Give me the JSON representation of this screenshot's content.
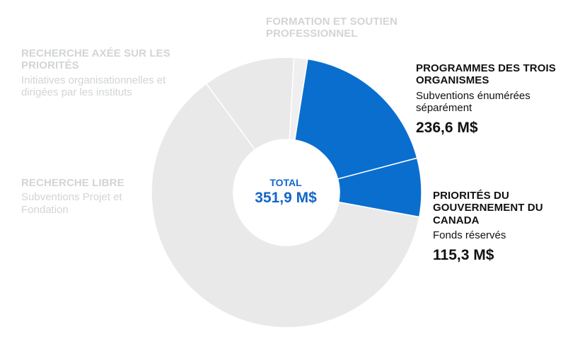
{
  "chart_data": {
    "type": "pie",
    "center": {
      "label": "TOTAL",
      "value": "351,9 M$"
    },
    "colors": {
      "highlight": "#0a6ecf",
      "muted": "#e9e9e9",
      "muted_alt": "#efefef",
      "separator": "#ffffff"
    },
    "slices": [
      {
        "name": "PROGRAMMES DES TROIS ORGANISMES",
        "sub": "Subventions énumérées séparément",
        "value_label": "236,6 M$",
        "value": 236.6,
        "highlighted": true
      },
      {
        "name": "PRIORITÉS DU GOUVERNEMENT DU CANADA",
        "sub": "Fonds réservés",
        "value_label": "115,3 M$",
        "value": 115.3,
        "highlighted": true
      },
      {
        "name": "RECHERCHE LIBRE",
        "sub": "Subventions Projet et Fondation",
        "value_label": "",
        "value": null,
        "share": 0.62,
        "highlighted": false
      },
      {
        "name": "RECHERCHE AXÉE SUR LES PRIORITÉS",
        "sub": "Initiatives organisationnelles et dirigées par les instituts",
        "value_label": "",
        "value": null,
        "share": 0.11,
        "highlighted": false
      },
      {
        "name": "FORMATION ET SOUTIEN PROFESSIONNEL",
        "sub": "",
        "value_label": "",
        "value": null,
        "share": 0.016,
        "highlighted": false
      }
    ],
    "start_angle_deg": 9,
    "direction": "clockwise",
    "highlight_shares": [
      0.184,
      0.07
    ]
  }
}
